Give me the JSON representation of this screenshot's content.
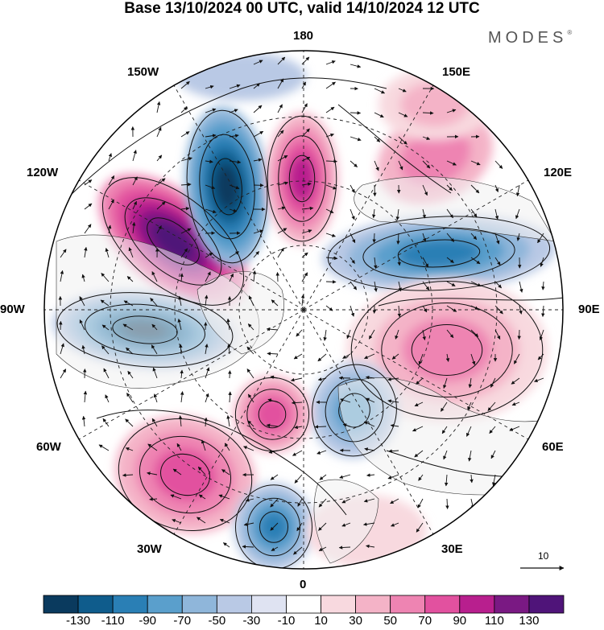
{
  "header": {
    "title": "Base 13/10/2024 00 UTC, valid 14/10/2024 12 UTC",
    "brand": "MODES"
  },
  "map": {
    "projection": "north-polar-stereographic",
    "longitude_labels": {
      "top": "180",
      "bottom": "0",
      "left": "90W",
      "right": "90E",
      "upper_left": "150W",
      "upper_right": "150E",
      "mid_left": "120W",
      "mid_right": "120E",
      "lower_left": "60W",
      "lower_right": "60E",
      "bottom_left": "30W",
      "bottom_right": "30E"
    },
    "vector_reference": {
      "label": "10"
    },
    "colors": {
      "land": "#f0f0f0",
      "coast": "#333333",
      "grid": "#222222",
      "stream": "#111111"
    }
  },
  "colorbar": {
    "tick_labels": [
      "-130",
      "-110",
      "-90",
      "-70",
      "-50",
      "-30",
      "-10",
      "10",
      "30",
      "50",
      "70",
      "90",
      "110",
      "130"
    ],
    "colors": [
      "#0a3a5e",
      "#0f5c8c",
      "#2a7fb5",
      "#5a9fcc",
      "#8fb6da",
      "#b9c9e5",
      "#dfe3f2",
      "#ffffff",
      "#f8d9df",
      "#f4b3c7",
      "#ee84b2",
      "#e2519f",
      "#b81f8e",
      "#7a1983",
      "#4f1479"
    ]
  }
}
